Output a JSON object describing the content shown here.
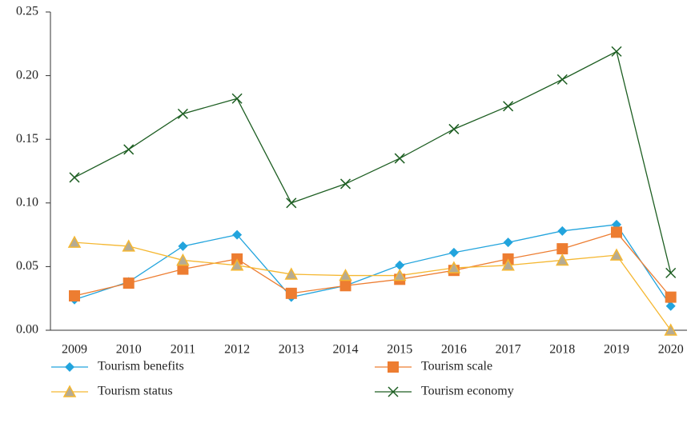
{
  "chart_data": {
    "type": "line",
    "categories": [
      "2009",
      "2010",
      "2011",
      "2012",
      "2013",
      "2014",
      "2015",
      "2016",
      "2017",
      "2018",
      "2019",
      "2020"
    ],
    "series": [
      {
        "name": "Tourism benefits",
        "color": "#22a4dd",
        "marker": "diamond",
        "values": [
          0.024,
          0.038,
          0.066,
          0.075,
          0.026,
          0.035,
          0.051,
          0.061,
          0.069,
          0.078,
          0.083,
          0.019
        ]
      },
      {
        "name": "Tourism scale",
        "color": "#ed7d31",
        "marker": "square",
        "values": [
          0.027,
          0.037,
          0.048,
          0.056,
          0.029,
          0.035,
          0.04,
          0.047,
          0.056,
          0.064,
          0.077,
          0.026
        ]
      },
      {
        "name": "Tourism status",
        "color": "#f5b731",
        "marker": "triangle",
        "values": [
          0.069,
          0.066,
          0.055,
          0.051,
          0.044,
          0.043,
          0.043,
          0.049,
          0.051,
          0.055,
          0.059,
          0.0
        ]
      },
      {
        "name": "Tourism economy",
        "color": "#1d5e22",
        "marker": "x",
        "values": [
          0.12,
          0.142,
          0.17,
          0.182,
          0.1,
          0.115,
          0.135,
          0.158,
          0.176,
          0.197,
          0.219,
          0.045
        ]
      }
    ],
    "ylim": [
      0,
      0.25
    ],
    "yticks": [
      {
        "value": 0,
        "label": "0.00"
      },
      0.05,
      {
        "value": 0.1,
        "label": "0.10"
      },
      0.15,
      {
        "value": 0.2,
        "label": "0.20"
      },
      0.25
    ],
    "legend": "bottom"
  }
}
